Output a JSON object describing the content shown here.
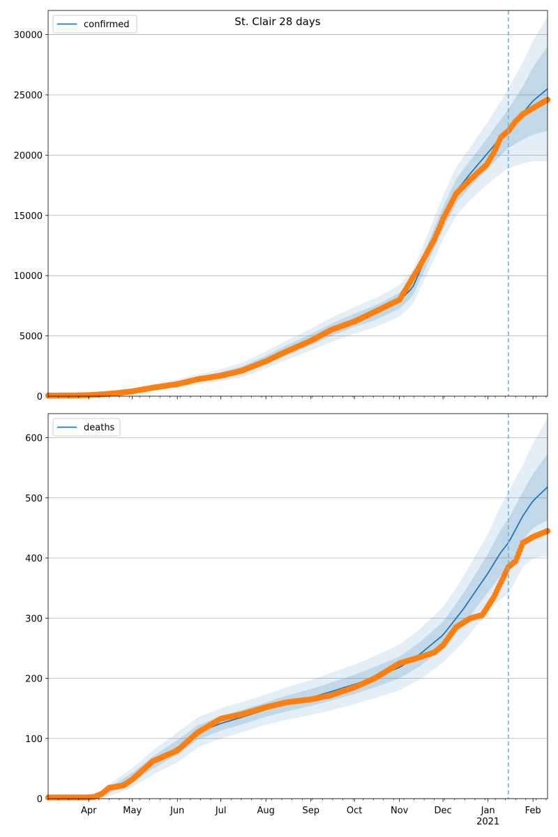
{
  "title": "St. Clair 28 days",
  "colors": {
    "model_line": "#1f77b4",
    "model_band": "#1f77b4",
    "observed": "#ff7f0e",
    "grid": "#b0b0b0",
    "forecast_line": "#7fb3d5"
  },
  "x_axis": {
    "month_ticks": [
      {
        "date": "2020-04-01",
        "label": "Apr"
      },
      {
        "date": "2020-05-01",
        "label": "May"
      },
      {
        "date": "2020-06-01",
        "label": "Jun"
      },
      {
        "date": "2020-07-01",
        "label": "Jul"
      },
      {
        "date": "2020-08-01",
        "label": "Aug"
      },
      {
        "date": "2020-09-01",
        "label": "Sep"
      },
      {
        "date": "2020-10-01",
        "label": "Oct"
      },
      {
        "date": "2020-11-01",
        "label": "Nov"
      },
      {
        "date": "2020-12-01",
        "label": "Dec"
      },
      {
        "date": "2021-01-01",
        "label": "Jan"
      },
      {
        "date": "2021-02-01",
        "label": "Feb"
      }
    ],
    "year_label": "2021",
    "start": "2020-03-04",
    "end": "2021-02-11",
    "forecast_start": "2021-01-15"
  },
  "chart_data": [
    {
      "type": "line",
      "legend": "confirmed",
      "legend_position": "top-left",
      "ylim": [
        0,
        32000
      ],
      "yticks": [
        0,
        5000,
        10000,
        15000,
        20000,
        25000,
        30000
      ],
      "grid": true,
      "model": {
        "dates": [
          "2020-03-04",
          "2020-03-15",
          "2020-03-25",
          "2020-04-05",
          "2020-04-15",
          "2020-05-01",
          "2020-05-15",
          "2020-06-01",
          "2020-06-15",
          "2020-07-01",
          "2020-07-15",
          "2020-08-01",
          "2020-08-15",
          "2020-09-01",
          "2020-09-15",
          "2020-10-01",
          "2020-10-15",
          "2020-11-01",
          "2020-11-10",
          "2020-11-20",
          "2020-12-01",
          "2020-12-10",
          "2020-12-20",
          "2021-01-01",
          "2021-01-10",
          "2021-01-15",
          "2021-01-25",
          "2021-02-01",
          "2021-02-11"
        ],
        "values": [
          0,
          10,
          50,
          150,
          250,
          500,
          750,
          1100,
          1400,
          1750,
          2150,
          3000,
          3800,
          4700,
          5500,
          6300,
          6900,
          7900,
          9000,
          11700,
          14800,
          17000,
          18500,
          20200,
          21500,
          22200,
          23500,
          24500,
          25500
        ],
        "band_half_widths": [
          [
            0,
            5,
            20,
            40,
            60,
            80,
            100,
            150,
            200,
            250,
            300,
            350,
            400,
            450,
            500,
            550,
            600,
            650,
            700,
            800,
            900,
            1000,
            1100,
            1300,
            1500,
            1600,
            2200,
            2800,
            3500
          ],
          [
            0,
            10,
            40,
            80,
            120,
            160,
            200,
            300,
            400,
            500,
            600,
            700,
            800,
            900,
            1000,
            1100,
            1200,
            1300,
            1400,
            1600,
            1800,
            2000,
            2200,
            2600,
            3000,
            3300,
            4200,
            5000,
            6000
          ]
        ]
      },
      "observed": {
        "dates": [
          "2020-03-04",
          "2020-03-20",
          "2020-03-31",
          "2020-04-10",
          "2020-04-20",
          "2020-05-01",
          "2020-05-15",
          "2020-06-01",
          "2020-06-15",
          "2020-07-01",
          "2020-07-15",
          "2020-08-01",
          "2020-08-15",
          "2020-09-01",
          "2020-09-15",
          "2020-10-01",
          "2020-10-15",
          "2020-11-01",
          "2020-11-05",
          "2020-11-15",
          "2020-11-25",
          "2020-12-01",
          "2020-12-10",
          "2020-12-20",
          "2020-12-31",
          "2021-01-05",
          "2021-01-10",
          "2021-01-15",
          "2021-01-20",
          "2021-01-25",
          "2021-02-01",
          "2021-02-11"
        ],
        "values": [
          50,
          60,
          80,
          150,
          250,
          400,
          700,
          1000,
          1400,
          1700,
          2100,
          2900,
          3700,
          4600,
          5500,
          6200,
          7000,
          8000,
          8800,
          10800,
          13000,
          14700,
          16800,
          18000,
          19200,
          20200,
          21500,
          22000,
          22800,
          23400,
          23900,
          24600
        ]
      }
    },
    {
      "type": "line",
      "legend": "deaths",
      "legend_position": "top-left",
      "ylim": [
        0,
        640
      ],
      "yticks": [
        0,
        100,
        200,
        300,
        400,
        500,
        600
      ],
      "grid": true,
      "model": {
        "dates": [
          "2020-03-04",
          "2020-03-20",
          "2020-04-01",
          "2020-04-10",
          "2020-04-20",
          "2020-05-01",
          "2020-05-15",
          "2020-06-01",
          "2020-06-15",
          "2020-07-01",
          "2020-07-15",
          "2020-08-01",
          "2020-08-15",
          "2020-09-01",
          "2020-09-15",
          "2020-10-01",
          "2020-10-15",
          "2020-11-01",
          "2020-11-15",
          "2020-12-01",
          "2020-12-15",
          "2021-01-01",
          "2021-01-10",
          "2021-01-15",
          "2021-01-25",
          "2021-02-01",
          "2021-02-11"
        ],
        "values": [
          0,
          0,
          2,
          8,
          20,
          35,
          60,
          85,
          110,
          125,
          135,
          148,
          158,
          168,
          178,
          190,
          202,
          218,
          240,
          272,
          315,
          375,
          410,
          425,
          470,
          495,
          518
        ],
        "band_half_widths": [
          [
            0,
            0,
            1,
            3,
            6,
            8,
            10,
            12,
            12,
            12,
            12,
            12,
            13,
            14,
            15,
            16,
            17,
            18,
            20,
            22,
            26,
            32,
            38,
            40,
            40,
            45,
            55
          ],
          [
            0,
            0,
            2,
            6,
            12,
            16,
            20,
            25,
            25,
            25,
            25,
            25,
            27,
            29,
            31,
            33,
            35,
            38,
            42,
            46,
            54,
            65,
            78,
            85,
            85,
            95,
            115
          ]
        ]
      },
      "observed": {
        "dates": [
          "2020-03-04",
          "2020-03-31",
          "2020-04-05",
          "2020-04-10",
          "2020-04-15",
          "2020-04-25",
          "2020-05-01",
          "2020-05-15",
          "2020-06-01",
          "2020-06-15",
          "2020-07-01",
          "2020-07-15",
          "2020-08-01",
          "2020-08-15",
          "2020-09-01",
          "2020-09-15",
          "2020-10-01",
          "2020-10-15",
          "2020-11-01",
          "2020-11-15",
          "2020-11-25",
          "2020-12-01",
          "2020-12-10",
          "2020-12-20",
          "2020-12-28",
          "2021-01-05",
          "2021-01-12",
          "2021-01-15",
          "2021-01-20",
          "2021-01-25",
          "2021-02-01",
          "2021-02-11"
        ],
        "values": [
          2,
          2,
          3,
          8,
          18,
          22,
          32,
          62,
          80,
          110,
          133,
          140,
          152,
          160,
          165,
          172,
          185,
          200,
          225,
          235,
          243,
          255,
          285,
          300,
          305,
          335,
          370,
          385,
          395,
          425,
          435,
          445
        ]
      }
    }
  ]
}
